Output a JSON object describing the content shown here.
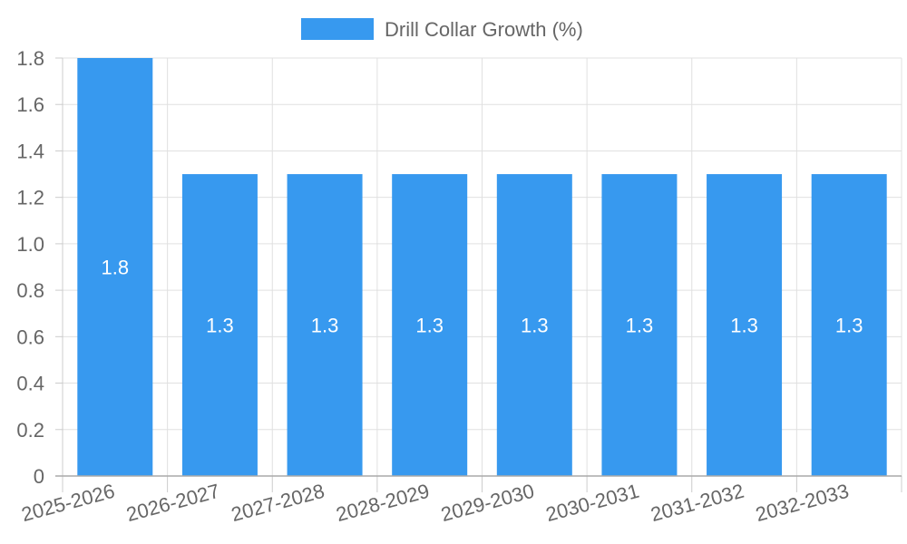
{
  "chart_data": {
    "type": "bar",
    "title": "",
    "xlabel": "",
    "ylabel": "",
    "legend_position": "top",
    "grid": true,
    "ylim": [
      0,
      1.8
    ],
    "y_ticks": [
      "0",
      "0.2",
      "0.4",
      "0.6",
      "0.8",
      "1.0",
      "1.2",
      "1.4",
      "1.6",
      "1.8"
    ],
    "categories": [
      "2025-2026",
      "2026-2027",
      "2027-2028",
      "2028-2029",
      "2029-2030",
      "2030-2031",
      "2031-2032",
      "2032-2033"
    ],
    "series": [
      {
        "name": "Drill Collar Growth (%)",
        "values": [
          1.8,
          1.3,
          1.3,
          1.3,
          1.3,
          1.3,
          1.3,
          1.3
        ],
        "data_labels": [
          "1.8",
          "1.3",
          "1.3",
          "1.3",
          "1.3",
          "1.3",
          "1.3",
          "1.3"
        ],
        "color": "#3799EF"
      }
    ]
  }
}
